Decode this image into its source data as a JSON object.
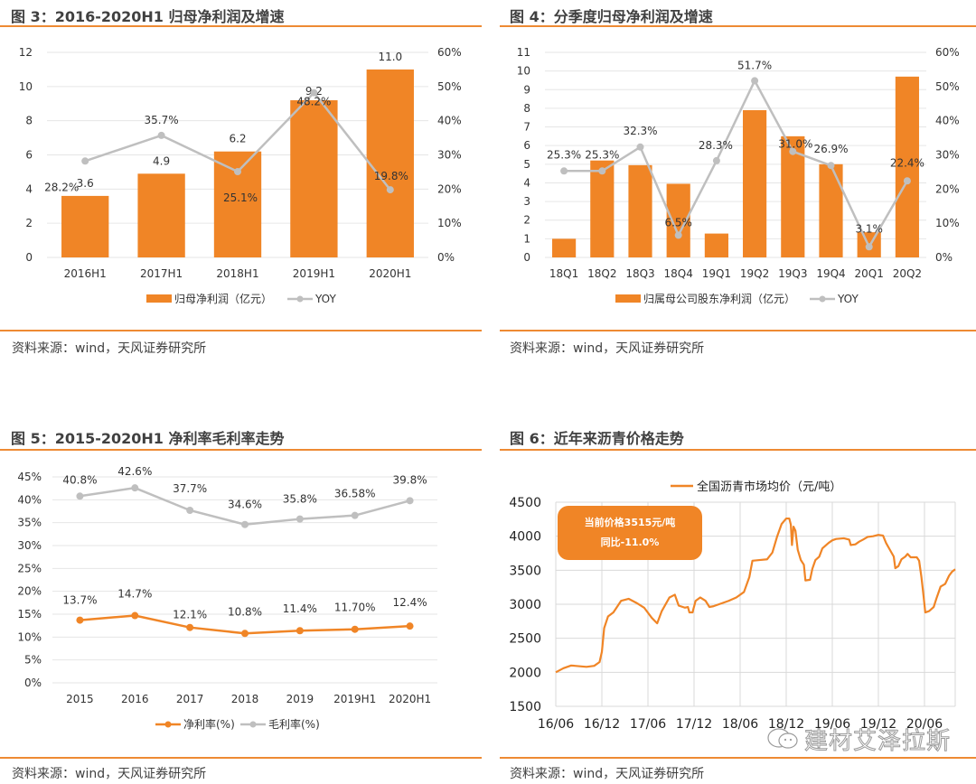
{
  "colors": {
    "accent": "#f08526",
    "rule": "#ee8a33",
    "line_gray": "#bfbfbf",
    "grid": "#e6e6e6"
  },
  "source_text": "资料来源：wind，天风证券研究所",
  "watermark": "建材艾泽拉斯",
  "watermark_icon": "wechat-icon",
  "figures": {
    "fig3": {
      "title": "图 3：2016-2020H1 归母净利润及增速"
    },
    "fig4": {
      "title": "图 4：分季度归母净利润及增速"
    },
    "fig5": {
      "title": "图 5：2015-2020H1 净利率毛利率走势"
    },
    "fig6": {
      "title": "图 6：近年来沥青价格走势",
      "callout_line1": "当前价格3515元/吨",
      "callout_line2": "同比-11.0%"
    }
  },
  "chart_data": [
    {
      "id": "fig3",
      "type": "bar",
      "title": "图 3：2016-2020H1 归母净利润及增速",
      "categories": [
        "2016H1",
        "2017H1",
        "2018H1",
        "2019H1",
        "2020H1"
      ],
      "series": [
        {
          "name": "归母净利润（亿元）",
          "type": "bar",
          "axis": "left",
          "values": [
            3.6,
            4.9,
            6.2,
            9.2,
            11.0
          ],
          "labels": [
            "3.6",
            "4.9",
            "6.2",
            "9.2",
            "11.0"
          ]
        },
        {
          "name": "YOY",
          "type": "line",
          "axis": "right",
          "values": [
            28.2,
            35.7,
            25.1,
            48.2,
            19.8
          ],
          "labels": [
            "28.2%",
            "35.7%",
            "25.1%",
            "48.2%",
            "19.8%"
          ]
        }
      ],
      "y_left": {
        "range": [
          0,
          12
        ],
        "ticks": [
          "0",
          "2",
          "4",
          "6",
          "8",
          "10",
          "12"
        ]
      },
      "y_right": {
        "range": [
          0,
          60
        ],
        "ticks": [
          "0%",
          "10%",
          "20%",
          "30%",
          "40%",
          "50%",
          "60%"
        ]
      },
      "grid": true,
      "legend_position": "bottom"
    },
    {
      "id": "fig4",
      "type": "bar",
      "title": "图 4：分季度归母净利润及增速",
      "categories": [
        "18Q1",
        "18Q2",
        "18Q3",
        "18Q4",
        "19Q1",
        "19Q2",
        "19Q3",
        "19Q4",
        "20Q1",
        "20Q2"
      ],
      "series": [
        {
          "name": "归属母公司股东净利润（亿元）",
          "type": "bar",
          "axis": "left",
          "values": [
            1.0,
            5.2,
            4.95,
            3.95,
            1.28,
            7.9,
            6.5,
            5.0,
            1.35,
            9.7
          ]
        },
        {
          "name": "YOY",
          "type": "line",
          "axis": "right",
          "values": [
            25.3,
            25.3,
            32.3,
            6.5,
            28.3,
            51.7,
            31.0,
            26.9,
            3.1,
            22.4
          ],
          "labels": [
            "25.3%",
            "25.3%",
            "32.3%",
            "6.5%",
            "28.3%",
            "51.7%",
            "31.0%",
            "26.9%",
            "3.1%",
            "22.4%"
          ]
        }
      ],
      "y_left": {
        "range": [
          0,
          11
        ],
        "ticks": [
          "0",
          "1",
          "2",
          "3",
          "4",
          "5",
          "6",
          "7",
          "8",
          "9",
          "10",
          "11"
        ]
      },
      "y_right": {
        "range": [
          0,
          60
        ],
        "ticks": [
          "0%",
          "10%",
          "20%",
          "30%",
          "40%",
          "50%",
          "60%"
        ]
      },
      "grid": true,
      "legend_position": "bottom"
    },
    {
      "id": "fig5",
      "type": "line",
      "title": "图 5：2015-2020H1 净利率毛利率走势",
      "categories": [
        "2015",
        "2016",
        "2017",
        "2018",
        "2019",
        "2019H1",
        "2020H1"
      ],
      "series": [
        {
          "name": "净利率(%)",
          "color": "#f08526",
          "values": [
            13.7,
            14.7,
            12.1,
            10.8,
            11.4,
            11.7,
            12.4
          ],
          "labels": [
            "13.7%",
            "14.7%",
            "12.1%",
            "10.8%",
            "11.4%",
            "11.70%",
            "12.4%"
          ]
        },
        {
          "name": "毛利率(%)",
          "color": "#bfbfbf",
          "values": [
            40.8,
            42.6,
            37.7,
            34.6,
            35.8,
            36.58,
            39.8
          ],
          "labels": [
            "40.8%",
            "42.6%",
            "37.7%",
            "34.6%",
            "35.8%",
            "36.58%",
            "39.8%"
          ]
        }
      ],
      "y": {
        "range": [
          0,
          45
        ],
        "ticks": [
          "0%",
          "5%",
          "10%",
          "15%",
          "20%",
          "25%",
          "30%",
          "35%",
          "40%",
          "45%"
        ]
      },
      "grid": true,
      "legend_position": "bottom"
    },
    {
      "id": "fig6",
      "type": "line",
      "title": "图 6：近年来沥青价格走势",
      "series_name": "全国沥青市场均价（元/吨）",
      "x_ticks": [
        "16/06",
        "16/12",
        "17/06",
        "17/12",
        "18/06",
        "18/12",
        "19/06",
        "19/12",
        "20/06"
      ],
      "x_range_months": [
        0,
        52
      ],
      "y": {
        "range": [
          1500,
          4500
        ],
        "ticks": [
          "1500",
          "2000",
          "2500",
          "3000",
          "3500",
          "4000",
          "4500"
        ]
      },
      "points": [
        [
          0,
          2000
        ],
        [
          1,
          2060
        ],
        [
          2,
          2100
        ],
        [
          3,
          2090
        ],
        [
          4,
          2080
        ],
        [
          5,
          2095
        ],
        [
          5.7,
          2150
        ],
        [
          6,
          2300
        ],
        [
          6.3,
          2650
        ],
        [
          6.8,
          2820
        ],
        [
          7.5,
          2880
        ],
        [
          8.5,
          3050
        ],
        [
          9.5,
          3080
        ],
        [
          10.5,
          3020
        ],
        [
          11.5,
          2950
        ],
        [
          12.5,
          2800
        ],
        [
          13.2,
          2720
        ],
        [
          13.8,
          2900
        ],
        [
          14.8,
          3100
        ],
        [
          15.5,
          3140
        ],
        [
          16,
          2980
        ],
        [
          16.8,
          2950
        ],
        [
          17.2,
          2960
        ],
        [
          17.4,
          2880
        ],
        [
          17.8,
          2880
        ],
        [
          18.2,
          3050
        ],
        [
          18.8,
          3100
        ],
        [
          19.5,
          3050
        ],
        [
          20,
          2960
        ],
        [
          20.5,
          2970
        ],
        [
          21.5,
          3010
        ],
        [
          22.5,
          3050
        ],
        [
          23.5,
          3100
        ],
        [
          24.5,
          3180
        ],
        [
          25.2,
          3400
        ],
        [
          25.6,
          3640
        ],
        [
          26.5,
          3650
        ],
        [
          27.5,
          3660
        ],
        [
          28.2,
          3760
        ],
        [
          28.8,
          3990
        ],
        [
          29.4,
          4180
        ],
        [
          30,
          4260
        ],
        [
          30.4,
          4260
        ],
        [
          30.6,
          4170
        ],
        [
          30.75,
          3870
        ],
        [
          30.95,
          4140
        ],
        [
          31.2,
          4080
        ],
        [
          31.5,
          3800
        ],
        [
          31.9,
          3650
        ],
        [
          32.3,
          3580
        ],
        [
          32.5,
          3350
        ],
        [
          33.1,
          3360
        ],
        [
          33.4,
          3520
        ],
        [
          33.8,
          3650
        ],
        [
          34.3,
          3700
        ],
        [
          34.7,
          3820
        ],
        [
          35.5,
          3900
        ],
        [
          36,
          3940
        ],
        [
          36.5,
          3960
        ],
        [
          37.5,
          3970
        ],
        [
          38.2,
          3950
        ],
        [
          38.4,
          3870
        ],
        [
          39,
          3880
        ],
        [
          39.5,
          3920
        ],
        [
          40,
          3950
        ],
        [
          40.6,
          3990
        ],
        [
          41.3,
          4000
        ],
        [
          42,
          4020
        ],
        [
          42.6,
          4010
        ],
        [
          43,
          3900
        ],
        [
          43.6,
          3780
        ],
        [
          44,
          3700
        ],
        [
          44.2,
          3530
        ],
        [
          44.6,
          3560
        ],
        [
          45,
          3660
        ],
        [
          45.5,
          3700
        ],
        [
          45.8,
          3740
        ],
        [
          46.2,
          3690
        ],
        [
          47,
          3690
        ],
        [
          47.3,
          3640
        ],
        [
          47.6,
          3400
        ],
        [
          47.9,
          3100
        ],
        [
          48.1,
          2880
        ],
        [
          48.6,
          2900
        ],
        [
          49.2,
          2960
        ],
        [
          49.6,
          3100
        ],
        [
          50.1,
          3260
        ],
        [
          50.7,
          3300
        ],
        [
          51.2,
          3420
        ],
        [
          51.6,
          3480
        ],
        [
          52,
          3515
        ]
      ],
      "callout": [
        "当前价格3515元/吨",
        "同比-11.0%"
      ],
      "grid": true,
      "legend_position": "top"
    }
  ]
}
